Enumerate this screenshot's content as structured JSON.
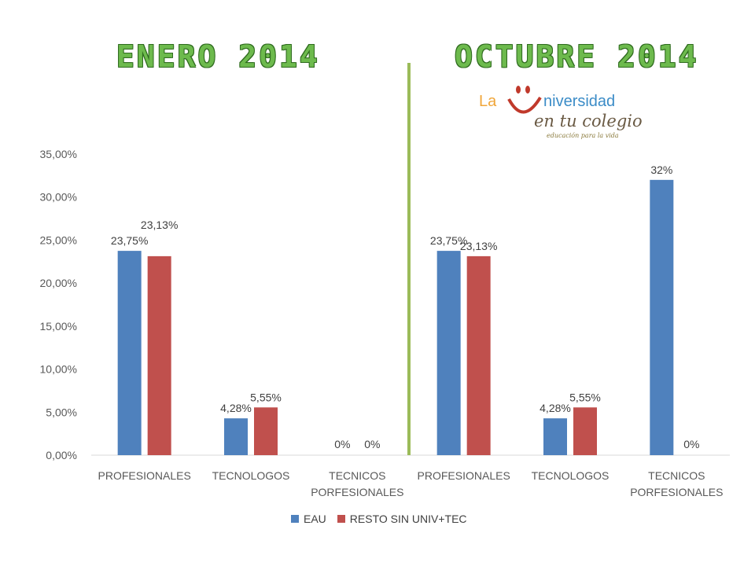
{
  "header": {
    "left_title": "ENERO 2014",
    "right_title": "OCTUBRE 2014"
  },
  "logo": {
    "la": "La",
    "niversidad": "niversidad",
    "script": "en tu colegio",
    "tagline": "educación para la vida"
  },
  "colors": {
    "EAU": "#4f81bd",
    "RESTO SIN UNIV+TEC": "#c0504d",
    "divider": "#9bbb59"
  },
  "chart_data": {
    "type": "bar",
    "ylim": [
      0,
      35
    ],
    "y_ticks": [
      "0,00%",
      "5,00%",
      "10,00%",
      "15,00%",
      "20,00%",
      "25,00%",
      "30,00%",
      "35,00%"
    ],
    "categories": [
      [
        "PROFESIONALES"
      ],
      [
        "TECNOLOGOS"
      ],
      [
        "TECNICOS",
        "PORFESIONALES"
      ],
      [
        "PROFESIONALES"
      ],
      [
        "TECNOLOGOS"
      ],
      [
        "TECNICOS",
        "PORFESIONALES"
      ]
    ],
    "series": [
      {
        "name": "EAU",
        "values": [
          23.75,
          4.28,
          0,
          23.75,
          4.28,
          32
        ],
        "labels": [
          "23,75%",
          "4,28%",
          "0%",
          "23,75%",
          "4,28%",
          "32%"
        ]
      },
      {
        "name": "RESTO SIN UNIV+TEC",
        "values": [
          23.13,
          5.55,
          0,
          23.13,
          5.55,
          0
        ],
        "labels": [
          "23,13%",
          "5,55%",
          "0%",
          "23,13%",
          "5,55%",
          "0%"
        ]
      }
    ],
    "legend": "bottom",
    "grid": false
  }
}
